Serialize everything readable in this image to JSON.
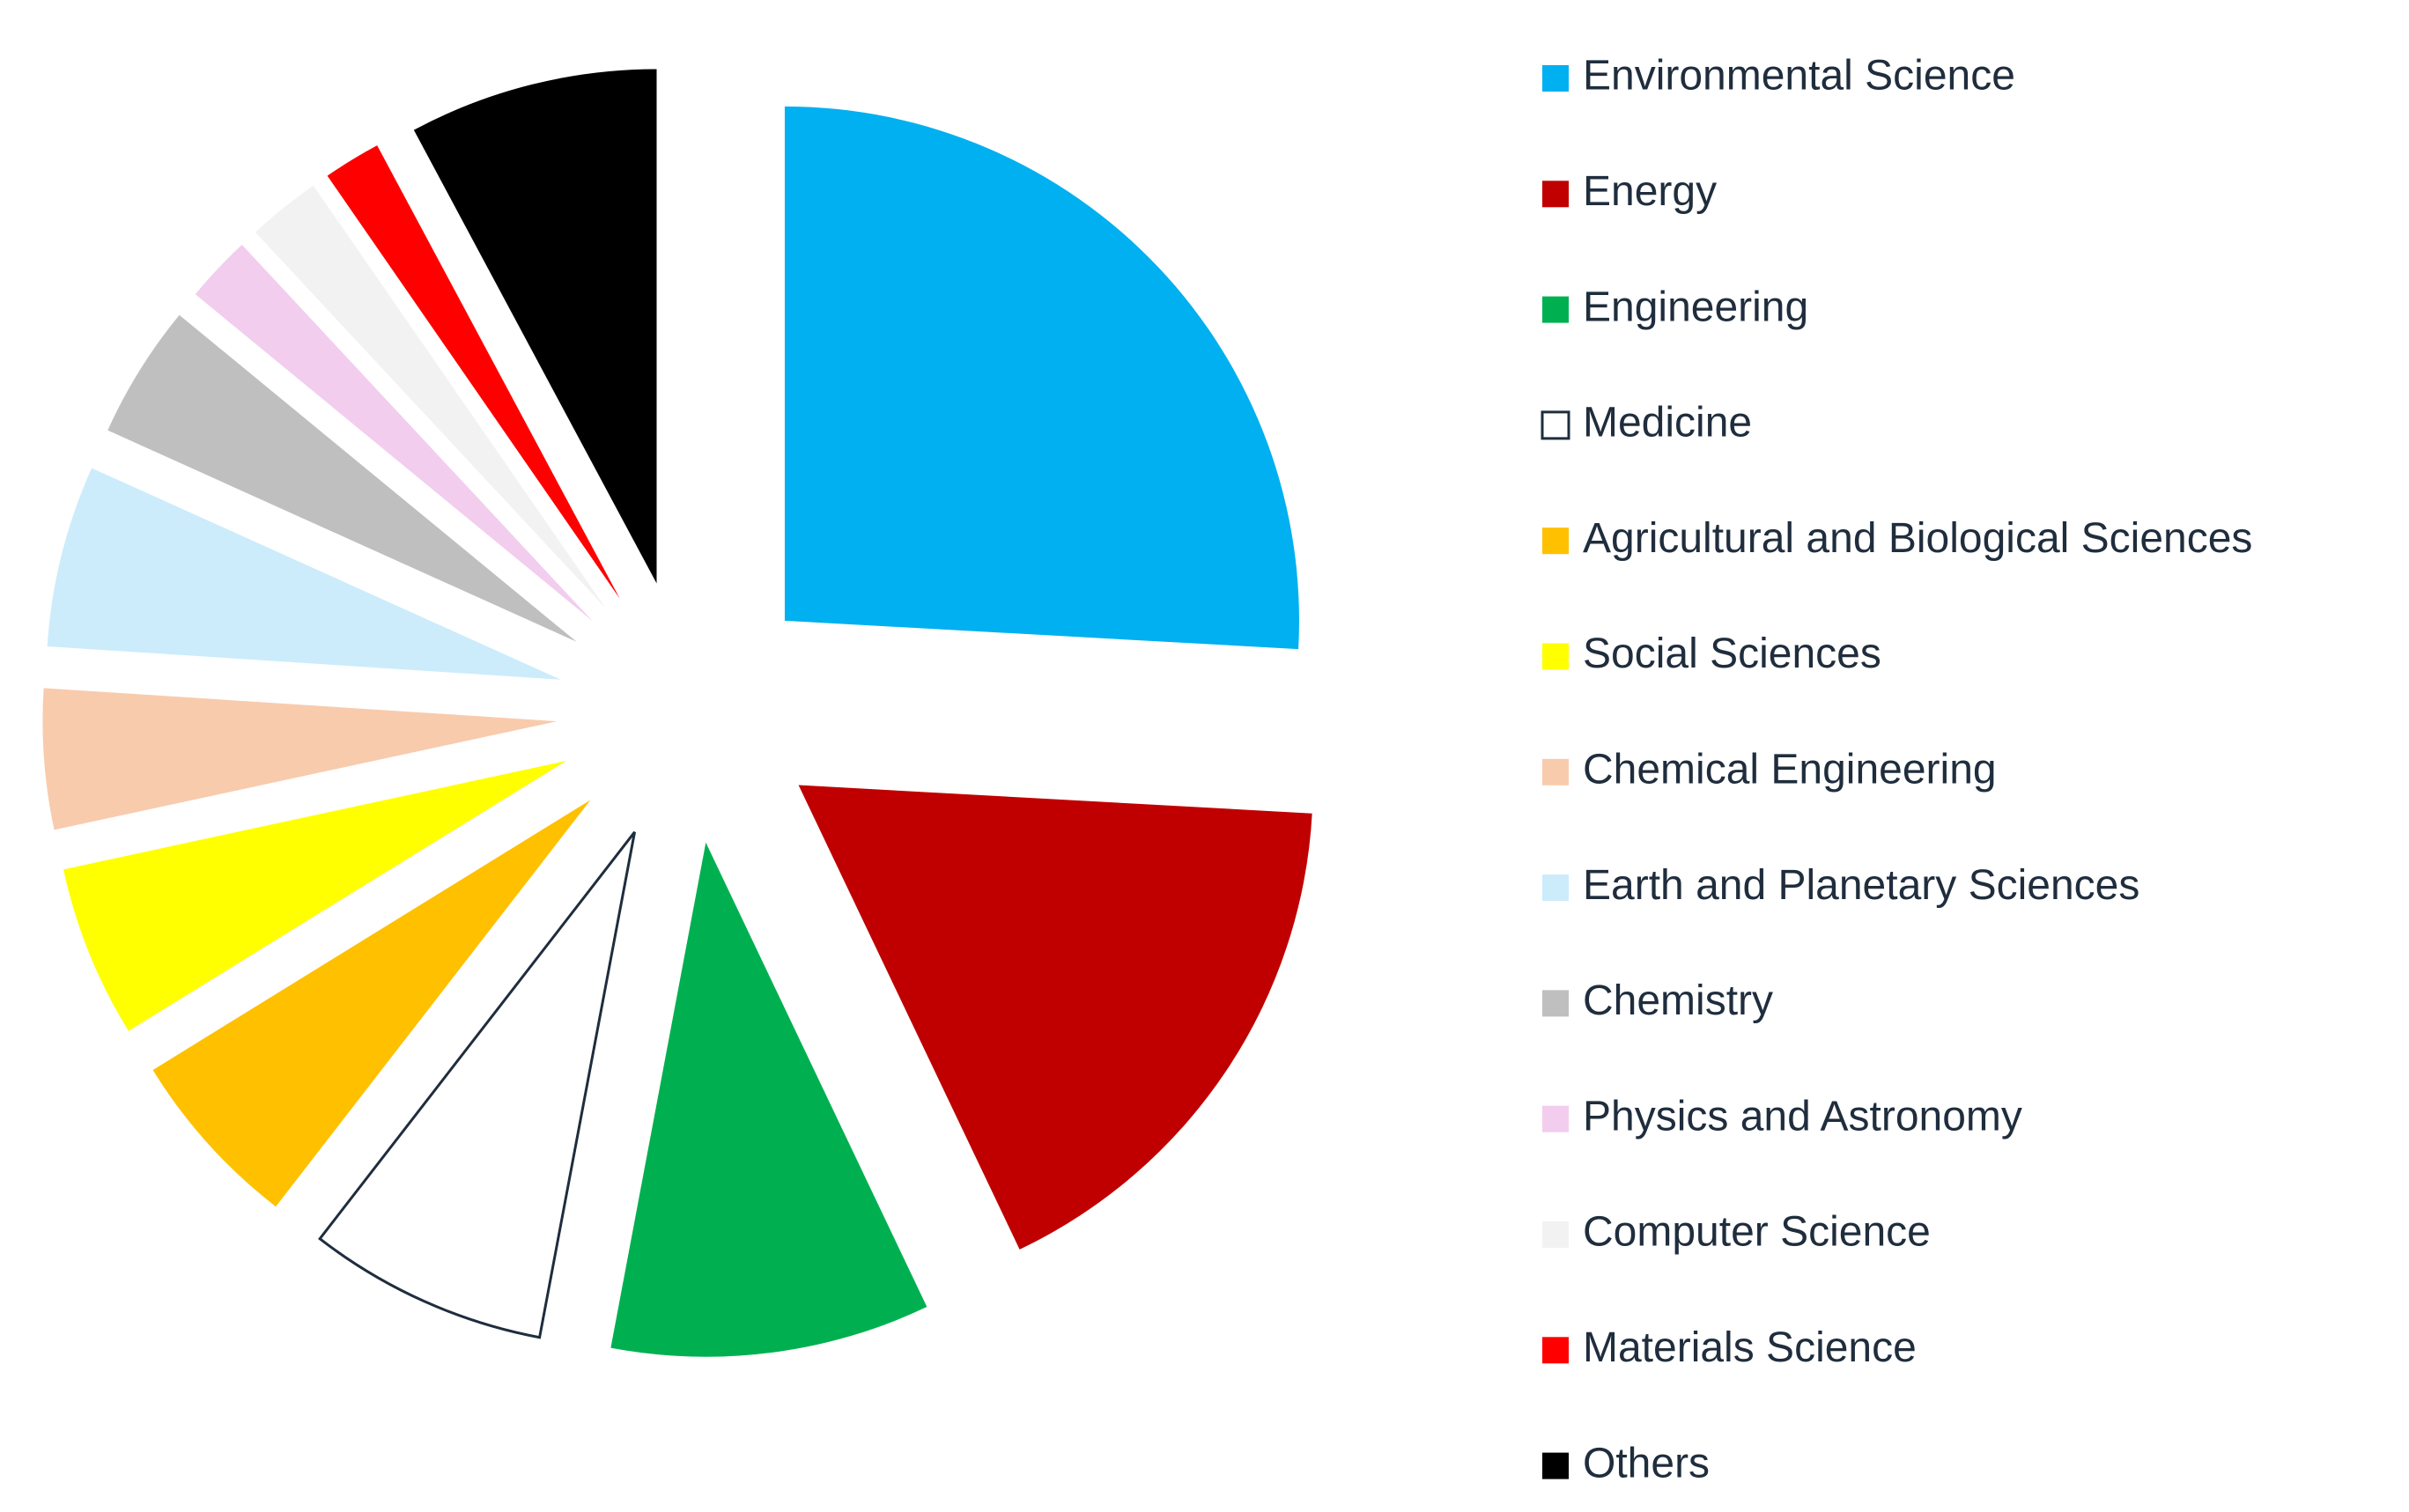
{
  "chart_data": {
    "type": "pie",
    "categories": [
      "Environmental Science",
      "Energy",
      "Engineering",
      "Medicine",
      "Agricultural and Biological Sciences",
      "Social Sciences",
      "Chemical Engineering",
      "Earth and Planetary Sciences",
      "Chemistry",
      "Physics and Astronomy",
      "Computer Science",
      "Materials Science",
      "Others"
    ],
    "values": [
      25.8,
      17,
      10,
      7.5,
      5.7,
      5.4,
      4.4,
      5.7,
      4.2,
      2.1,
      2.3,
      1.8,
      7.8
    ],
    "colors": [
      "#00b0f0",
      "#c00000",
      "#00b050",
      "#ffffff",
      "#ffc000",
      "#ffff00",
      "#f8cbad",
      "#ccecfb",
      "#bfbfbf",
      "#f2cdee",
      "#f2f2f2",
      "#ff0000",
      "#000000"
    ],
    "exploded": true,
    "legend": "right"
  }
}
